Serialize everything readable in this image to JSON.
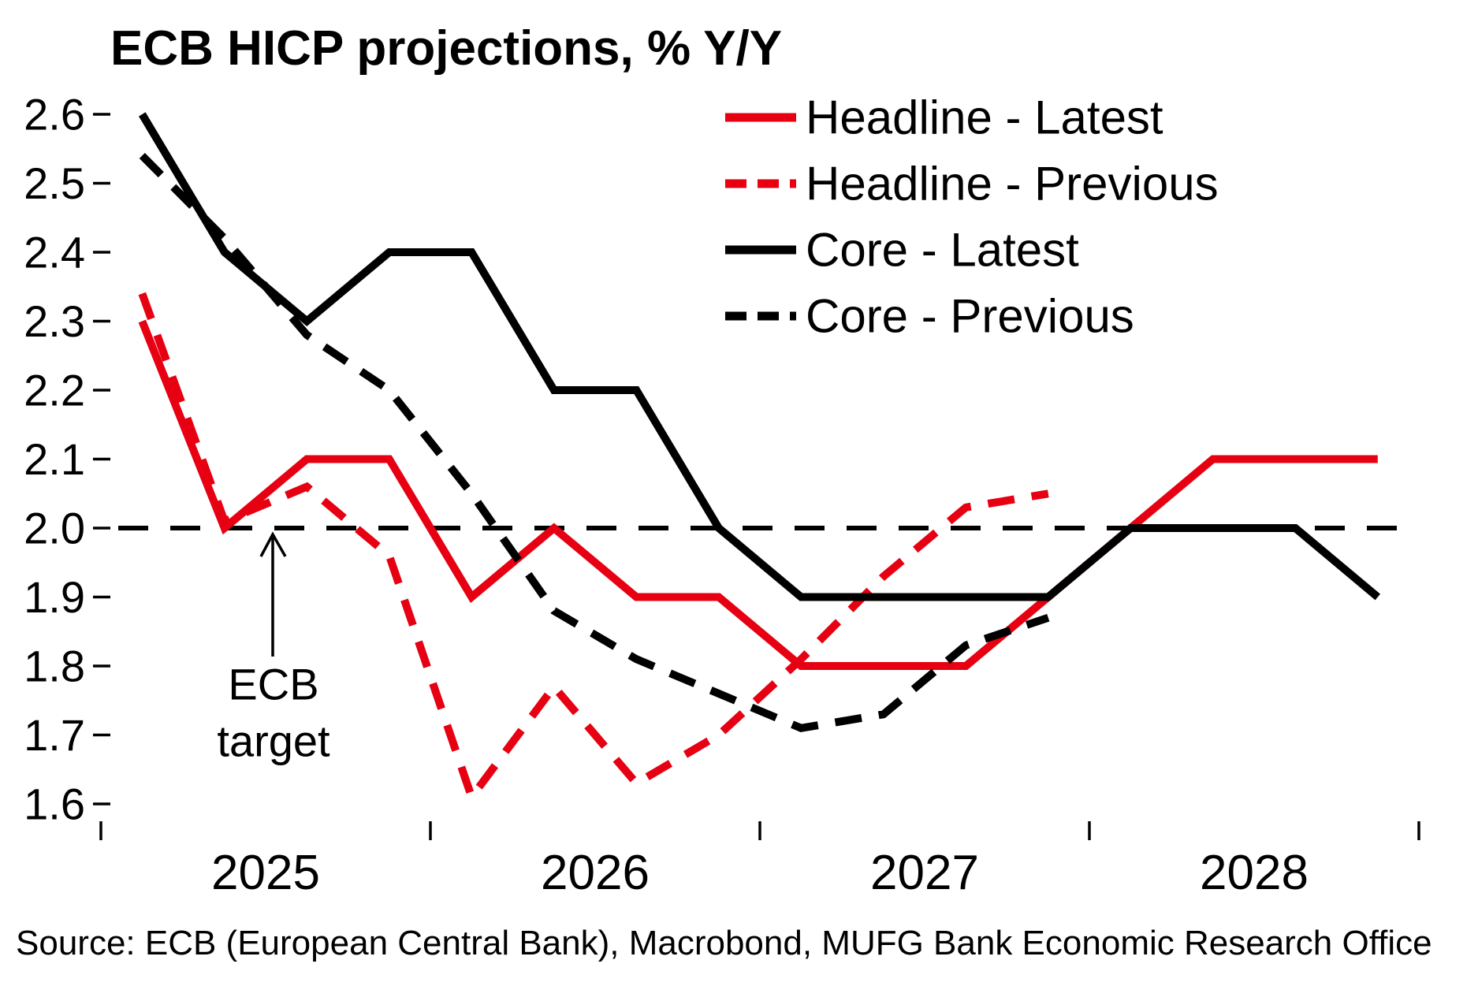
{
  "title": "ECB HICP projections, % Y/Y",
  "source": "Source: ECB (European Central Bank), Macrobond, MUFG Bank Economic Research Office",
  "colors": {
    "red": "#e60012",
    "black": "#000000"
  },
  "annotation": {
    "lines": [
      "ECB",
      "target"
    ]
  },
  "chart_data": {
    "type": "line",
    "title": "ECB HICP projections, % Y/Y",
    "frequency": "quarterly",
    "start_period": "2025Q1",
    "x_tick_labels": [
      "2025",
      "2026",
      "2027",
      "2028"
    ],
    "y_tick_labels": [
      "2.6",
      "2.5",
      "2.4",
      "2.3",
      "2.2",
      "2.1",
      "2.0",
      "1.9",
      "1.8",
      "1.7",
      "1.6"
    ],
    "ylim": [
      1.6,
      2.6
    ],
    "grid": "off",
    "legend_position": "top-right",
    "target_line": {
      "value": 2.0,
      "label": "ECB target"
    },
    "series": [
      {
        "name": "Headline - Latest",
        "color": "#e60012",
        "style": "solid",
        "values": [
          2.3,
          2.0,
          2.1,
          2.1,
          1.9,
          2.0,
          1.9,
          1.9,
          1.8,
          1.8,
          1.8,
          1.9,
          2.0,
          2.1,
          2.1,
          2.1
        ]
      },
      {
        "name": "Headline - Previous",
        "color": "#e60012",
        "style": "dashed",
        "values": [
          2.34,
          2.01,
          2.06,
          1.96,
          1.61,
          1.77,
          1.63,
          1.7,
          1.81,
          1.93,
          2.03,
          2.05
        ]
      },
      {
        "name": "Core - Latest",
        "color": "#000000",
        "style": "solid",
        "values": [
          2.6,
          2.4,
          2.3,
          2.4,
          2.4,
          2.2,
          2.2,
          2.0,
          1.9,
          1.9,
          1.9,
          1.9,
          2.0,
          2.0,
          2.0,
          1.9
        ]
      },
      {
        "name": "Core - Previous",
        "color": "#000000",
        "style": "dashed",
        "values": [
          2.54,
          2.42,
          2.28,
          2.2,
          2.05,
          1.88,
          1.81,
          1.76,
          1.71,
          1.73,
          1.83,
          1.87
        ]
      }
    ]
  }
}
